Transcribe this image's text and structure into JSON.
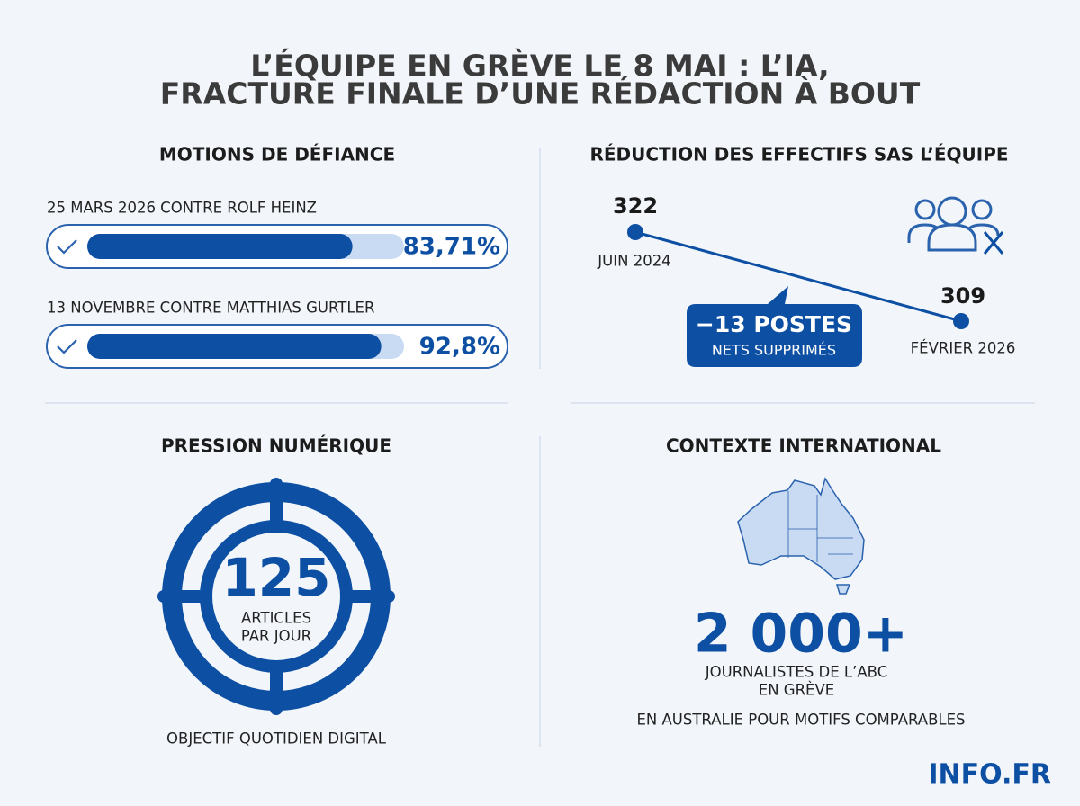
{
  "title_lines": [
    "L’ÉQUIPE EN GRÈVE LE 8 MAI : L’IA,",
    "FRACTURE FINALE D’UNE RÉDACTION À BOUT"
  ],
  "motions": {
    "heading": "MOTIONS DE DÉFIANCE",
    "items": [
      {
        "label": "25 MARS 2026 CONTRE ROLF HEINZ",
        "value": 83.71,
        "value_label": "83,71%"
      },
      {
        "label": "13 NOVEMBRE CONTRE MATTHIAS GURTLER",
        "value": 92.8,
        "value_label": "92,8%"
      }
    ]
  },
  "workforce": {
    "heading": "RÉDUCTION DES EFFECTIFS SAS L’ÉQUIPE",
    "points": [
      {
        "value": 322,
        "label": "JUIN 2024"
      },
      {
        "value": 309,
        "label": "FÉVRIER 2026"
      }
    ],
    "callout_title": "−13 POSTES",
    "callout_sub": "NETS SUPPRIMÉS"
  },
  "pressure": {
    "heading": "PRESSION NUMÉRIQUE",
    "value": 125,
    "line1": "ARTICLES",
    "line2": "PAR JOUR",
    "caption": "OBJECTIF QUOTIDIEN DIGITAL"
  },
  "international": {
    "heading": "CONTEXTE INTERNATIONAL",
    "value": "2 000+",
    "line1": "JOURNALISTES DE L’ABC",
    "line2": "EN GRÈVE",
    "note": "EN AUSTRALIE POUR MOTIFS COMPARABLES"
  },
  "brand": "INFO.FR"
}
